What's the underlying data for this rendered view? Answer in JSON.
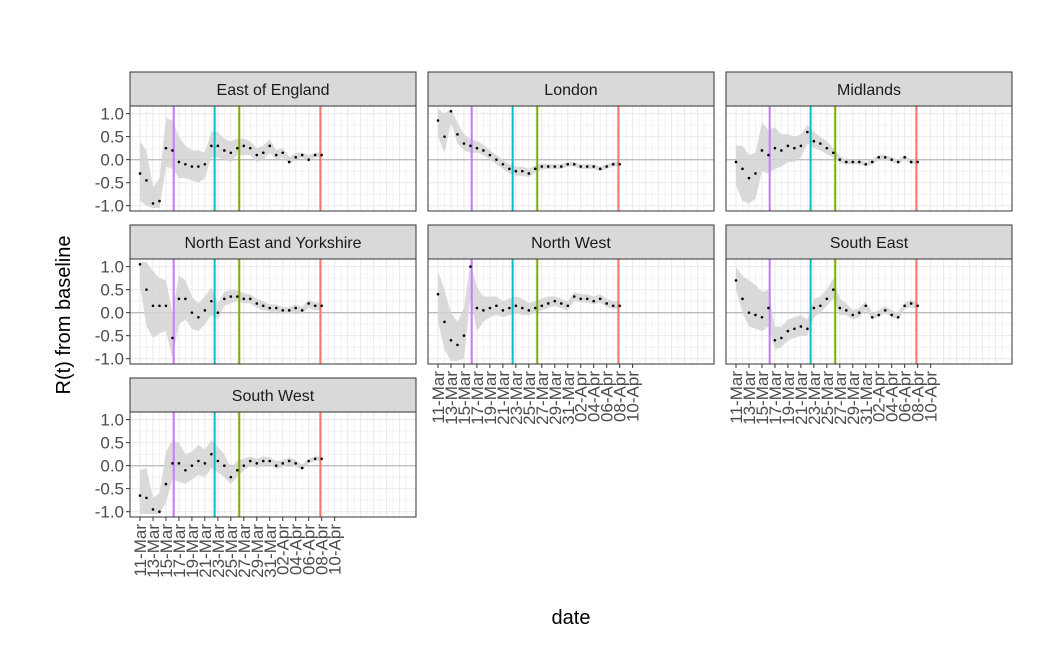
{
  "chart_data": {
    "type": "line",
    "xlabel": "date",
    "ylabel": "R(t) from baseline",
    "ylim": [
      -1.05,
      1.1
    ],
    "yticks": [
      1.0,
      0.5,
      0.0,
      -0.5,
      -1.0
    ],
    "ytick_labels": [
      "1.0",
      "0.5",
      "0.0",
      "-0.5",
      "-1.0"
    ],
    "xlim": [
      1,
      42
    ],
    "xticks": [
      {
        "day": 1,
        "label": "11-Mar"
      },
      {
        "day": 3,
        "label": "13-Mar"
      },
      {
        "day": 5,
        "label": "15-Mar"
      },
      {
        "day": 7,
        "label": "17-Mar"
      },
      {
        "day": 9,
        "label": "19-Mar"
      },
      {
        "day": 11,
        "label": "21-Mar"
      },
      {
        "day": 13,
        "label": "23-Mar"
      },
      {
        "day": 15,
        "label": "25-Mar"
      },
      {
        "day": 17,
        "label": "27-Mar"
      },
      {
        "day": 19,
        "label": "29-Mar"
      },
      {
        "day": 21,
        "label": "31-Mar"
      },
      {
        "day": 23,
        "label": "02-Apr"
      },
      {
        "day": 25,
        "label": "04-Apr"
      },
      {
        "day": 27,
        "label": "06-Apr"
      },
      {
        "day": 29,
        "label": "08-Apr"
      },
      {
        "day": 31,
        "label": "10-Apr"
      }
    ],
    "vlines": [
      {
        "day": 6.2,
        "color": "#C77CFF"
      },
      {
        "day": 12.5,
        "color": "#00BFC4"
      },
      {
        "day": 16.3,
        "color": "#7CAE00"
      },
      {
        "day": 28.8,
        "color": "#F8766D"
      }
    ],
    "grid": true,
    "band_color": "#d3d3d3",
    "point_color": "#000000",
    "panels": [
      {
        "name": "East of England",
        "x": [
          1,
          2,
          3,
          4,
          5,
          6,
          7,
          8,
          9,
          10,
          11,
          12,
          13,
          14,
          15,
          16,
          17,
          18,
          19,
          20,
          21,
          22,
          23,
          24,
          25,
          26,
          27,
          28,
          29
        ],
        "y": [
          -0.3,
          -0.45,
          -0.95,
          -0.9,
          0.25,
          0.2,
          -0.05,
          -0.1,
          -0.15,
          -0.15,
          -0.1,
          0.3,
          0.3,
          0.2,
          0.15,
          0.25,
          0.3,
          0.25,
          0.1,
          0.15,
          0.3,
          0.1,
          0.15,
          -0.05,
          0.05,
          0.1,
          0.0,
          0.1,
          0.1
        ],
        "lo": [
          -0.9,
          -1.0,
          -1.05,
          -1.05,
          -0.15,
          -0.2,
          -0.4,
          -0.4,
          -0.45,
          -0.5,
          -0.4,
          0.05,
          0.05,
          0.0,
          -0.05,
          0.1,
          0.1,
          0.1,
          -0.05,
          0.0,
          0.15,
          0.0,
          0.05,
          -0.1,
          0.0,
          0.05,
          -0.05,
          0.05,
          0.05
        ],
        "hi": [
          0.4,
          0.2,
          -0.6,
          -0.4,
          0.9,
          0.85,
          0.5,
          0.3,
          0.2,
          0.2,
          0.15,
          0.6,
          0.6,
          0.45,
          0.4,
          0.45,
          0.45,
          0.4,
          0.25,
          0.3,
          0.45,
          0.2,
          0.25,
          0.05,
          0.15,
          0.15,
          0.1,
          0.15,
          0.15
        ]
      },
      {
        "name": "London",
        "x": [
          1,
          2,
          3,
          4,
          5,
          6,
          7,
          8,
          9,
          10,
          11,
          12,
          13,
          14,
          15,
          16,
          17,
          18,
          19,
          20,
          21,
          22,
          23,
          24,
          25,
          26,
          27,
          28,
          29
        ],
        "y": [
          0.85,
          0.5,
          1.05,
          0.55,
          0.35,
          0.3,
          0.25,
          0.2,
          0.1,
          0.0,
          -0.1,
          -0.2,
          -0.25,
          -0.25,
          -0.3,
          -0.2,
          -0.15,
          -0.15,
          -0.15,
          -0.15,
          -0.1,
          -0.1,
          -0.15,
          -0.15,
          -0.15,
          -0.2,
          -0.15,
          -0.1,
          -0.1
        ],
        "lo": [
          0.5,
          0.15,
          0.8,
          0.35,
          0.2,
          0.15,
          0.15,
          0.1,
          0.0,
          -0.1,
          -0.2,
          -0.3,
          -0.35,
          -0.35,
          -0.38,
          -0.28,
          -0.22,
          -0.2,
          -0.2,
          -0.2,
          -0.15,
          -0.15,
          -0.2,
          -0.2,
          -0.2,
          -0.25,
          -0.2,
          -0.15,
          -0.15
        ],
        "hi": [
          1.1,
          1.0,
          1.1,
          0.8,
          0.55,
          0.45,
          0.4,
          0.32,
          0.2,
          0.1,
          0.0,
          -0.1,
          -0.15,
          -0.15,
          -0.2,
          -0.12,
          -0.08,
          -0.1,
          -0.1,
          -0.1,
          -0.05,
          -0.05,
          -0.1,
          -0.1,
          -0.1,
          -0.15,
          -0.1,
          -0.05,
          -0.05
        ]
      },
      {
        "name": "Midlands",
        "x": [
          1,
          2,
          3,
          4,
          5,
          6,
          7,
          8,
          9,
          10,
          11,
          12,
          13,
          14,
          15,
          16,
          17,
          18,
          19,
          20,
          21,
          22,
          23,
          24,
          25,
          26,
          27,
          28,
          29
        ],
        "y": [
          -0.05,
          -0.2,
          -0.4,
          -0.3,
          0.2,
          0.1,
          0.25,
          0.2,
          0.3,
          0.25,
          0.3,
          0.6,
          0.4,
          0.35,
          0.25,
          0.15,
          0.0,
          -0.05,
          -0.05,
          -0.05,
          -0.1,
          -0.05,
          0.05,
          0.05,
          0.0,
          -0.05,
          0.05,
          -0.05,
          -0.05
        ],
        "lo": [
          -0.55,
          -0.9,
          -0.95,
          -0.85,
          -0.25,
          -0.3,
          -0.2,
          -0.15,
          -0.05,
          -0.05,
          0.05,
          0.35,
          0.25,
          0.2,
          0.12,
          0.05,
          -0.08,
          -0.1,
          -0.1,
          -0.1,
          -0.15,
          -0.1,
          0.0,
          0.0,
          -0.05,
          -0.1,
          0.0,
          -0.1,
          -0.1
        ],
        "hi": [
          0.3,
          0.3,
          0.1,
          0.15,
          0.8,
          0.65,
          0.7,
          0.55,
          0.55,
          0.5,
          0.55,
          0.75,
          0.6,
          0.5,
          0.4,
          0.25,
          0.08,
          0.0,
          0.0,
          0.0,
          -0.05,
          0.0,
          0.1,
          0.1,
          0.05,
          0.0,
          0.1,
          0.0,
          0.0
        ]
      },
      {
        "name": "North East and Yorkshire",
        "x": [
          1,
          2,
          3,
          4,
          5,
          6,
          7,
          8,
          9,
          10,
          11,
          12,
          13,
          14,
          15,
          16,
          17,
          18,
          19,
          20,
          21,
          22,
          23,
          24,
          25,
          26,
          27,
          28,
          29
        ],
        "y": [
          1.05,
          0.5,
          0.15,
          0.15,
          0.15,
          -0.55,
          0.3,
          0.3,
          0.0,
          -0.1,
          0.05,
          0.25,
          0.0,
          0.3,
          0.35,
          0.35,
          0.3,
          0.3,
          0.2,
          0.15,
          0.1,
          0.1,
          0.05,
          0.05,
          0.1,
          0.05,
          0.2,
          0.15,
          0.15
        ],
        "lo": [
          0.6,
          -0.3,
          -0.55,
          -0.45,
          -0.4,
          -1.0,
          -0.25,
          -0.15,
          -0.35,
          -0.4,
          -0.25,
          -0.05,
          -0.15,
          0.15,
          0.2,
          0.25,
          0.2,
          0.2,
          0.1,
          0.05,
          0.02,
          0.02,
          -0.02,
          -0.02,
          0.02,
          -0.02,
          0.1,
          0.05,
          0.05
        ],
        "hi": [
          1.1,
          1.1,
          0.9,
          0.75,
          0.7,
          0.0,
          0.8,
          0.7,
          0.35,
          0.2,
          0.35,
          0.55,
          0.2,
          0.45,
          0.5,
          0.48,
          0.42,
          0.4,
          0.3,
          0.25,
          0.18,
          0.18,
          0.12,
          0.12,
          0.18,
          0.12,
          0.28,
          0.22,
          0.22
        ]
      },
      {
        "name": "North West",
        "x": [
          1,
          2,
          3,
          4,
          5,
          6,
          7,
          8,
          9,
          10,
          11,
          12,
          13,
          14,
          15,
          16,
          17,
          18,
          19,
          20,
          21,
          22,
          23,
          24,
          25,
          26,
          27,
          28,
          29
        ],
        "y": [
          0.4,
          -0.2,
          -0.6,
          -0.7,
          -0.5,
          1.0,
          0.1,
          0.05,
          0.1,
          0.15,
          0.05,
          0.1,
          0.15,
          0.1,
          0.05,
          0.1,
          0.15,
          0.2,
          0.25,
          0.2,
          0.15,
          0.35,
          0.3,
          0.3,
          0.25,
          0.3,
          0.2,
          0.15,
          0.15
        ],
        "lo": [
          -0.2,
          -0.8,
          -1.05,
          -1.05,
          -1.0,
          0.3,
          -0.4,
          -0.2,
          -0.1,
          -0.05,
          -0.1,
          -0.05,
          0.0,
          -0.05,
          -0.05,
          0.0,
          0.05,
          0.1,
          0.15,
          0.1,
          0.05,
          0.25,
          0.22,
          0.22,
          0.18,
          0.22,
          0.12,
          0.08,
          0.08
        ],
        "hi": [
          0.9,
          0.5,
          0.0,
          -0.2,
          0.1,
          1.1,
          0.55,
          0.35,
          0.35,
          0.35,
          0.25,
          0.3,
          0.35,
          0.3,
          0.2,
          0.25,
          0.3,
          0.35,
          0.35,
          0.3,
          0.25,
          0.45,
          0.4,
          0.4,
          0.35,
          0.4,
          0.3,
          0.25,
          0.25
        ]
      },
      {
        "name": "South East",
        "x": [
          1,
          2,
          3,
          4,
          5,
          6,
          7,
          8,
          9,
          10,
          11,
          12,
          13,
          14,
          15,
          16,
          17,
          18,
          19,
          20,
          21,
          22,
          23,
          24,
          25,
          26,
          27,
          28,
          29
        ],
        "y": [
          0.7,
          0.3,
          0.0,
          -0.05,
          -0.1,
          0.1,
          -0.6,
          -0.55,
          -0.4,
          -0.35,
          -0.3,
          -0.35,
          0.1,
          0.15,
          0.3,
          0.5,
          0.1,
          0.05,
          -0.05,
          0.0,
          0.15,
          -0.1,
          -0.05,
          0.05,
          -0.05,
          -0.1,
          0.15,
          0.2,
          0.15
        ],
        "lo": [
          0.5,
          0.0,
          -0.3,
          -0.35,
          -0.4,
          -0.3,
          -0.8,
          -0.75,
          -0.6,
          -0.55,
          -0.5,
          -0.5,
          -0.1,
          0.0,
          0.15,
          0.3,
          -0.05,
          -0.05,
          -0.15,
          -0.1,
          0.05,
          -0.15,
          -0.1,
          0.0,
          -0.1,
          -0.15,
          0.08,
          0.12,
          0.08
        ],
        "hi": [
          1.0,
          0.8,
          0.7,
          0.6,
          0.45,
          0.5,
          -0.3,
          -0.3,
          -0.15,
          -0.1,
          -0.05,
          -0.15,
          0.3,
          0.35,
          0.5,
          0.75,
          0.3,
          0.2,
          0.05,
          0.1,
          0.25,
          0.0,
          0.05,
          0.15,
          0.05,
          0.0,
          0.22,
          0.28,
          0.22
        ]
      },
      {
        "name": "South West",
        "x": [
          1,
          2,
          3,
          4,
          5,
          6,
          7,
          8,
          9,
          10,
          11,
          12,
          13,
          14,
          15,
          16,
          17,
          18,
          19,
          20,
          21,
          22,
          23,
          24,
          25,
          26,
          27,
          28,
          29
        ],
        "y": [
          -0.65,
          -0.7,
          -0.95,
          -1.0,
          -0.4,
          0.05,
          0.05,
          -0.1,
          0.0,
          0.1,
          0.05,
          0.25,
          0.1,
          0.0,
          -0.25,
          -0.1,
          0.0,
          0.1,
          0.05,
          0.1,
          0.1,
          0.0,
          0.05,
          0.1,
          0.05,
          -0.05,
          0.1,
          0.15,
          0.15
        ],
        "lo": [
          -1.05,
          -1.05,
          -1.05,
          -1.05,
          -0.8,
          -0.3,
          -0.35,
          -0.4,
          -0.3,
          -0.2,
          -0.25,
          -0.05,
          -0.15,
          -0.25,
          -0.4,
          -0.25,
          -0.1,
          0.0,
          -0.05,
          0.0,
          0.02,
          -0.08,
          -0.02,
          0.02,
          -0.02,
          -0.1,
          0.05,
          0.1,
          0.1
        ],
        "hi": [
          -0.1,
          -0.05,
          -0.7,
          -0.6,
          0.3,
          0.55,
          0.5,
          0.25,
          0.3,
          0.45,
          0.35,
          0.55,
          0.4,
          0.25,
          -0.05,
          0.1,
          0.15,
          0.2,
          0.15,
          0.2,
          0.18,
          0.1,
          0.12,
          0.18,
          0.12,
          0.02,
          0.15,
          0.2,
          0.2
        ]
      }
    ]
  }
}
